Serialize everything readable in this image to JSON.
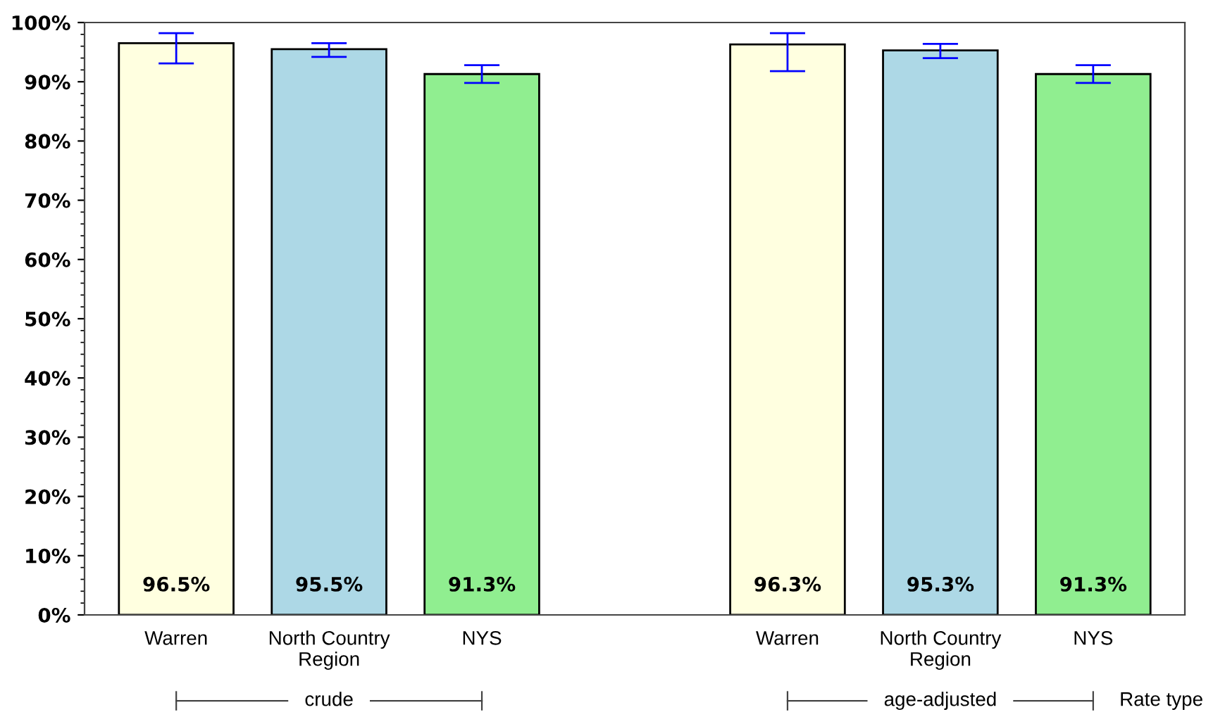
{
  "chart_data": {
    "type": "bar",
    "categories": [
      "Warren",
      "North Country\nRegion",
      "NYS",
      null,
      "Warren",
      "North Country\nRegion",
      "NYS"
    ],
    "values": [
      96.5,
      95.5,
      91.3,
      null,
      96.3,
      95.3,
      91.3
    ],
    "colors": [
      "#ffffe0",
      "#add8e6",
      "#90ee90",
      null,
      "#ffffe0",
      "#add8e6",
      "#90ee90"
    ],
    "errors": [
      [
        93.1,
        98.2
      ],
      [
        94.2,
        96.5
      ],
      [
        89.8,
        92.8
      ],
      null,
      [
        91.8,
        98.2
      ],
      [
        94.0,
        96.4
      ],
      [
        89.8,
        92.8
      ]
    ],
    "value_labels": [
      "96.5%",
      "95.5%",
      "91.3%",
      null,
      "96.3%",
      "95.3%",
      "91.3%"
    ],
    "ylim": [
      0,
      100
    ],
    "yticks": [
      {
        "value": 0,
        "label": "0%"
      },
      {
        "value": 10,
        "label": "10%"
      },
      {
        "value": 20,
        "label": "20%"
      },
      {
        "value": 30,
        "label": "30%"
      },
      {
        "value": 40,
        "label": "40%"
      },
      {
        "value": 50,
        "label": "50%"
      },
      {
        "value": 60,
        "label": "60%"
      },
      {
        "value": 70,
        "label": "70%"
      },
      {
        "value": 80,
        "label": "80%"
      },
      {
        "value": 90,
        "label": "90%"
      },
      {
        "value": 100,
        "label": "100%"
      }
    ],
    "annotations": [
      "crude",
      "age-adjusted",
      "Rate type"
    ],
    "grid": false,
    "legend": false
  }
}
